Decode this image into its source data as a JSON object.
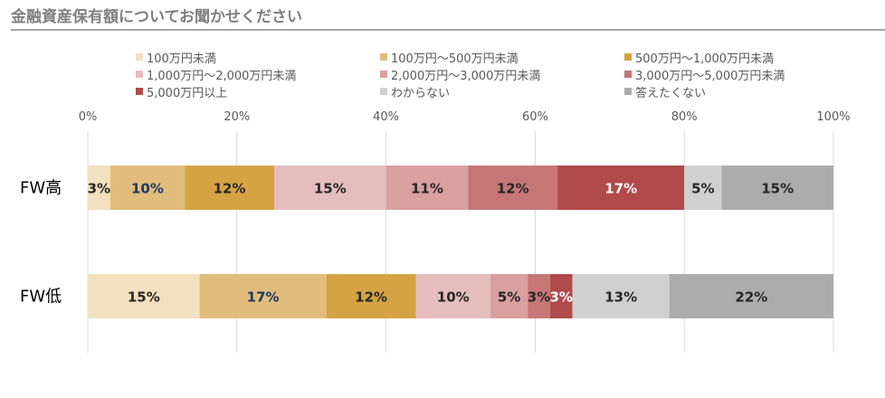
{
  "title": "金融資産保有額についてお聞かせください",
  "chart_data": {
    "type": "bar",
    "orientation": "horizontal",
    "stacked": "percent",
    "categories": [
      "FW高",
      "FW低"
    ],
    "xlim": [
      0,
      100
    ],
    "x_ticks": [
      "0%",
      "20%",
      "40%",
      "60%",
      "80%",
      "100%"
    ],
    "grid": true,
    "legend_position": "top",
    "series": [
      {
        "name": "100万円未満",
        "color": "#f2e0bf",
        "values": [
          3,
          15
        ],
        "labels": [
          "3%",
          "15%"
        ],
        "label_color": "#262626"
      },
      {
        "name": "100万円～500万円未満",
        "color": "#e1bd7c",
        "values": [
          10,
          17
        ],
        "labels": [
          "10%",
          "17%"
        ],
        "label_color": "#1f3864"
      },
      {
        "name": "500万円～1,000万円未満",
        "color": "#d5a344",
        "values": [
          12,
          12
        ],
        "labels": [
          "12%",
          "12%"
        ],
        "label_color": "#262626"
      },
      {
        "name": "1,000万円～2,000万円未満",
        "color": "#e6bdbd",
        "values": [
          15,
          10
        ],
        "labels": [
          "15%",
          "10%"
        ],
        "label_color": "#262626"
      },
      {
        "name": "2,000万円～3,000万円未満",
        "color": "#d9a0a0",
        "values": [
          11,
          5
        ],
        "labels": [
          "11%",
          "5%"
        ],
        "label_color": "#262626"
      },
      {
        "name": "3,000万円～5,000万円未満",
        "color": "#c77676",
        "values": [
          12,
          3
        ],
        "labels": [
          "12%",
          "3%"
        ],
        "label_color": "#262626"
      },
      {
        "name": "5,000万円以上",
        "color": "#b14a4a",
        "values": [
          17,
          3
        ],
        "labels": [
          "17%",
          "3%"
        ],
        "label_color": "#ffffff"
      },
      {
        "name": "わからない",
        "color": "#d0d0d0",
        "values": [
          5,
          13
        ],
        "labels": [
          "5%",
          "13%"
        ],
        "label_color": "#262626"
      },
      {
        "name": "答えたくない",
        "color": "#acacac",
        "values": [
          15,
          22
        ],
        "labels": [
          "15%",
          "22%"
        ],
        "label_color": "#262626"
      }
    ]
  }
}
